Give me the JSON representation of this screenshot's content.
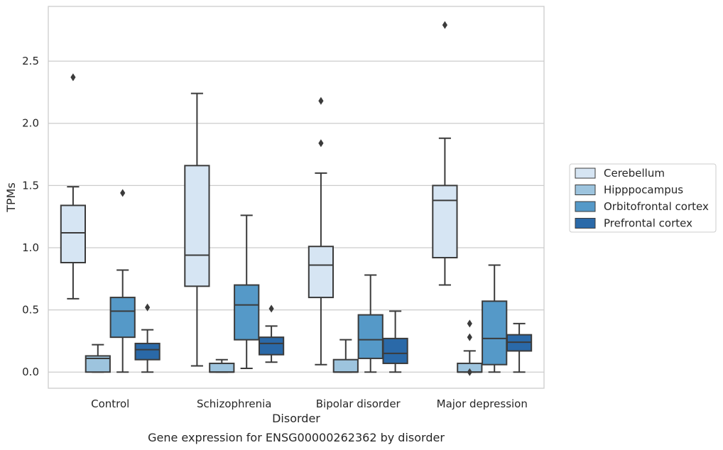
{
  "chart_data": {
    "type": "boxplot",
    "xlabel": "Disorder",
    "ylabel": "TPMs",
    "caption": "Gene expression for ENSG00000262362 by disorder",
    "categories": [
      "Control",
      "Schizophrenia",
      "Bipolar disorder",
      "Major depression"
    ],
    "ylim": [
      -0.13,
      2.94
    ],
    "yticks": [
      "0.0",
      "0.5",
      "1.0",
      "1.5",
      "2.0",
      "2.5"
    ],
    "ytick_values": [
      0.0,
      0.5,
      1.0,
      1.5,
      2.0,
      2.5
    ],
    "grid": "horizontal",
    "legend_position": "right",
    "series": [
      {
        "name": "Cerebellum",
        "color": "#d6e5f3",
        "boxes": [
          {
            "whislo": 0.59,
            "q1": 0.88,
            "med": 1.12,
            "q3": 1.34,
            "whishi": 1.49,
            "fliers": [
              2.37
            ]
          },
          {
            "whislo": 0.05,
            "q1": 0.69,
            "med": 0.94,
            "q3": 1.66,
            "whishi": 2.24,
            "fliers": []
          },
          {
            "whislo": 0.06,
            "q1": 0.6,
            "med": 0.86,
            "q3": 1.01,
            "whishi": 1.6,
            "fliers": [
              1.84,
              2.18
            ]
          },
          {
            "whislo": 0.7,
            "q1": 0.92,
            "med": 1.38,
            "q3": 1.5,
            "whishi": 1.88,
            "fliers": [
              2.79
            ]
          }
        ]
      },
      {
        "name": "Hipppocampus",
        "color": "#9dc4de",
        "boxes": [
          {
            "whislo": 0.0,
            "q1": 0.0,
            "med": 0.11,
            "q3": 0.13,
            "whishi": 0.22,
            "fliers": []
          },
          {
            "whislo": 0.0,
            "q1": 0.0,
            "med": 0.0,
            "q3": 0.07,
            "whishi": 0.1,
            "fliers": []
          },
          {
            "whislo": 0.0,
            "q1": 0.0,
            "med": 0.0,
            "q3": 0.1,
            "whishi": 0.26,
            "fliers": []
          },
          {
            "whislo": 0.0,
            "q1": 0.0,
            "med": 0.0,
            "q3": 0.07,
            "whishi": 0.17,
            "fliers": [
              0.0,
              0.28,
              0.39
            ]
          }
        ]
      },
      {
        "name": "Orbitofrontal cortex",
        "color": "#5599c8",
        "boxes": [
          {
            "whislo": 0.0,
            "q1": 0.28,
            "med": 0.49,
            "q3": 0.6,
            "whishi": 0.82,
            "fliers": [
              1.44
            ]
          },
          {
            "whislo": 0.03,
            "q1": 0.26,
            "med": 0.54,
            "q3": 0.7,
            "whishi": 1.26,
            "fliers": []
          },
          {
            "whislo": 0.0,
            "q1": 0.11,
            "med": 0.26,
            "q3": 0.46,
            "whishi": 0.78,
            "fliers": []
          },
          {
            "whislo": 0.0,
            "q1": 0.06,
            "med": 0.27,
            "q3": 0.57,
            "whishi": 0.86,
            "fliers": []
          }
        ]
      },
      {
        "name": "Prefrontal cortex",
        "color": "#2a69a8",
        "boxes": [
          {
            "whislo": 0.0,
            "q1": 0.1,
            "med": 0.18,
            "q3": 0.23,
            "whishi": 0.34,
            "fliers": [
              0.52
            ]
          },
          {
            "whislo": 0.08,
            "q1": 0.14,
            "med": 0.23,
            "q3": 0.28,
            "whishi": 0.37,
            "fliers": [
              0.51
            ]
          },
          {
            "whislo": 0.0,
            "q1": 0.07,
            "med": 0.15,
            "q3": 0.27,
            "whishi": 0.49,
            "fliers": []
          },
          {
            "whislo": 0.0,
            "q1": 0.17,
            "med": 0.24,
            "q3": 0.3,
            "whishi": 0.39,
            "fliers": []
          }
        ]
      }
    ]
  }
}
